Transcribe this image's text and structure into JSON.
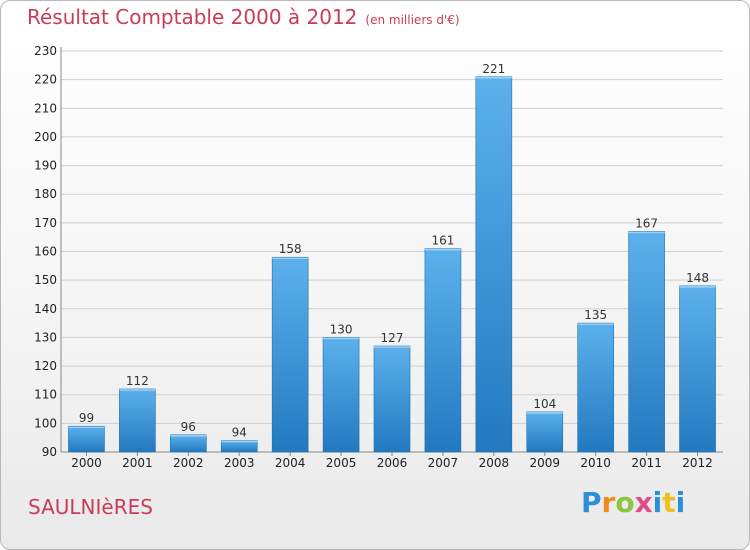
{
  "header": {
    "title": "Résultat Comptable 2000 à 2012",
    "unit": "(en milliers d'€)"
  },
  "footer": {
    "commune": "SAULNIèRES",
    "logo_letters": [
      "P",
      "r",
      "o",
      "x",
      "i",
      "t",
      "i"
    ]
  },
  "colors": {
    "bar_top": "#5cb1ec",
    "bar_bottom": "#2379bf",
    "title": "#c83c5a",
    "grid": "#cfcfcf"
  },
  "chart_data": {
    "type": "bar",
    "title": "Résultat Comptable 2000 à 2012",
    "subtitle": "(en milliers d'€)",
    "xlabel": "",
    "ylabel": "",
    "categories": [
      "2000",
      "2001",
      "2002",
      "2003",
      "2004",
      "2005",
      "2006",
      "2007",
      "2008",
      "2009",
      "2010",
      "2011",
      "2012"
    ],
    "values": [
      99,
      112,
      96,
      94,
      158,
      130,
      127,
      161,
      221,
      104,
      135,
      167,
      148
    ],
    "ylim": [
      90,
      230
    ],
    "yticks": [
      90,
      100,
      110,
      120,
      130,
      140,
      150,
      160,
      170,
      180,
      190,
      200,
      210,
      220,
      230
    ],
    "grid": true,
    "data_labels": true
  }
}
